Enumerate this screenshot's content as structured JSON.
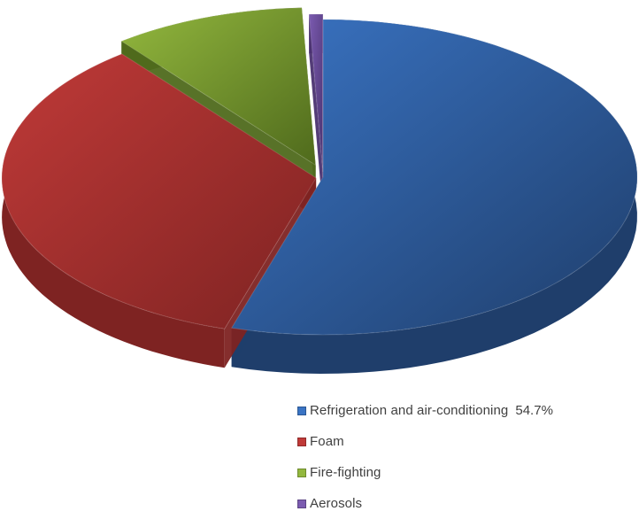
{
  "chart_data": {
    "type": "pie",
    "style": "3d-exploded",
    "slices": [
      {
        "label": "Refrigeration and air-conditioning",
        "value": 54.7,
        "value_label": "54.7%",
        "color": "#3a74c4",
        "side_color": "#1f3e6b"
      },
      {
        "label": "Foam",
        "value": 34.7,
        "value_label": "",
        "color": "#c03a38",
        "side_color": "#7e2322"
      },
      {
        "label": "Fire-fighting",
        "value": 9.9,
        "value_label": "",
        "color": "#93b83e",
        "side_color": "#4f6a1c"
      },
      {
        "label": "Aerosols",
        "value": 0.7,
        "value_label": "",
        "color": "#7b5bb0",
        "side_color": "#4a3270"
      }
    ],
    "legend_position": "bottom-right"
  }
}
